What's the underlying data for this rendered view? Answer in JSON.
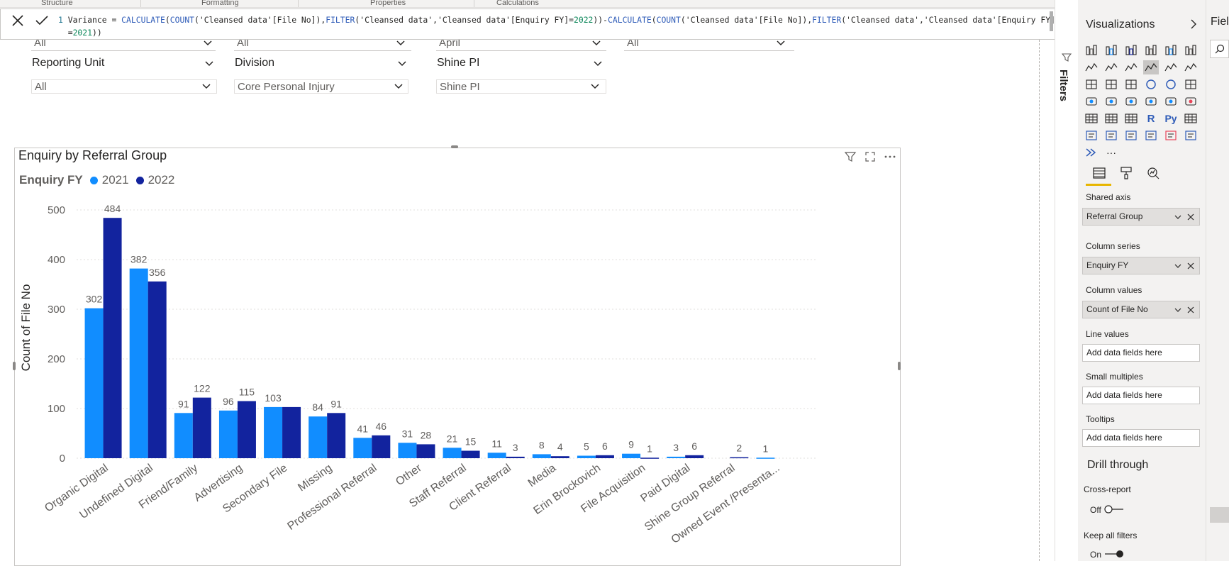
{
  "ribbon": {
    "groups": [
      "Structure",
      "Formatting",
      "Properties",
      "Calculations"
    ]
  },
  "formula": {
    "line_no": "1",
    "line1_a": "Variance = ",
    "line1_b": "CALCULATE",
    "line1_c": "(",
    "line1_d": "COUNT",
    "line1_e": "('Cleansed data'[File No]),",
    "line1_f": "FILTER",
    "line1_g": "('Cleansed data','Cleansed data'[Enquiry FY]=",
    "line1_h": "2022",
    "line1_i": "))-",
    "line1_j": "CALCULATE",
    "line1_k": "(",
    "line1_l": "COUNT",
    "line1_m": "('Cleansed data'[File No]),",
    "line1_n": "FILTER",
    "line1_o": "('Cleansed data','Cleansed data'[Enquiry FY]",
    "line2_a": "=",
    "line2_b": "2021",
    "line2_c": "))"
  },
  "slicers": {
    "row1": [
      "All",
      "All",
      "April",
      "All"
    ],
    "row2_labels": [
      "Reporting Unit",
      "Division",
      "Shine PI"
    ],
    "row2_values": [
      "All",
      "Core Personal Injury",
      "Shine PI"
    ]
  },
  "filters_label": "Filters",
  "visualizations": {
    "title": "Visualizations",
    "fields_label": "Fiel",
    "shared_axis_label": "Shared axis",
    "shared_axis_value": "Referral Group",
    "column_series_label": "Column series",
    "column_series_value": "Enquiry FY",
    "column_values_label": "Column values",
    "column_values_value": "Count of File No",
    "line_values_label": "Line values",
    "small_multiples_label": "Small multiples",
    "tooltips_label": "Tooltips",
    "add_fields": "Add data fields here",
    "drill_through": "Drill through",
    "cross_report": "Cross-report",
    "cross_report_state": "Off",
    "keep_filters": "Keep all filters",
    "keep_filters_state": "On",
    "r_label": "R",
    "py_label": "Py",
    "more": "···"
  },
  "chart_data": {
    "type": "bar",
    "title": "Enquiry by Referral Group",
    "legend_title": "Enquiry FY",
    "ylabel": "Count of File No",
    "xlabel": "",
    "ylim": [
      0,
      500
    ],
    "yticks": [
      0,
      100,
      200,
      300,
      400,
      500
    ],
    "categories": [
      "Organic Digital",
      "Undefined Digital",
      "Friend/Family",
      "Advertising",
      "Secondary File",
      "Missing",
      "Professional Referral",
      "Other",
      "Staff Referral",
      "Client Referral",
      "Media",
      "Erin Brockovich",
      "File Acquisition",
      "Paid Digital",
      "Shine Group Referral",
      "Owned Event /Presenta..."
    ],
    "series": [
      {
        "name": "2021",
        "color": "#118dff",
        "values": [
          302,
          382,
          91,
          96,
          103,
          84,
          41,
          31,
          21,
          11,
          8,
          5,
          9,
          3,
          null,
          1
        ]
      },
      {
        "name": "2022",
        "color": "#12239e",
        "values": [
          484,
          356,
          122,
          115,
          103,
          91,
          46,
          28,
          15,
          3,
          4,
          6,
          1,
          6,
          2,
          null
        ]
      }
    ],
    "data_labels": [
      [
        "302",
        "484"
      ],
      [
        "382",
        "356"
      ],
      [
        "91",
        "122"
      ],
      [
        "96",
        "115"
      ],
      [
        "103",
        ""
      ],
      [
        "84",
        "91"
      ],
      [
        "41",
        "46"
      ],
      [
        "31",
        "28"
      ],
      [
        "21",
        "15"
      ],
      [
        "11",
        "3"
      ],
      [
        "8",
        "4"
      ],
      [
        "5",
        "6"
      ],
      [
        "9",
        "1"
      ],
      [
        "3",
        "6"
      ],
      [
        "",
        "2"
      ],
      [
        "1",
        ""
      ]
    ],
    "grid": true,
    "legend_position": "top-left"
  }
}
